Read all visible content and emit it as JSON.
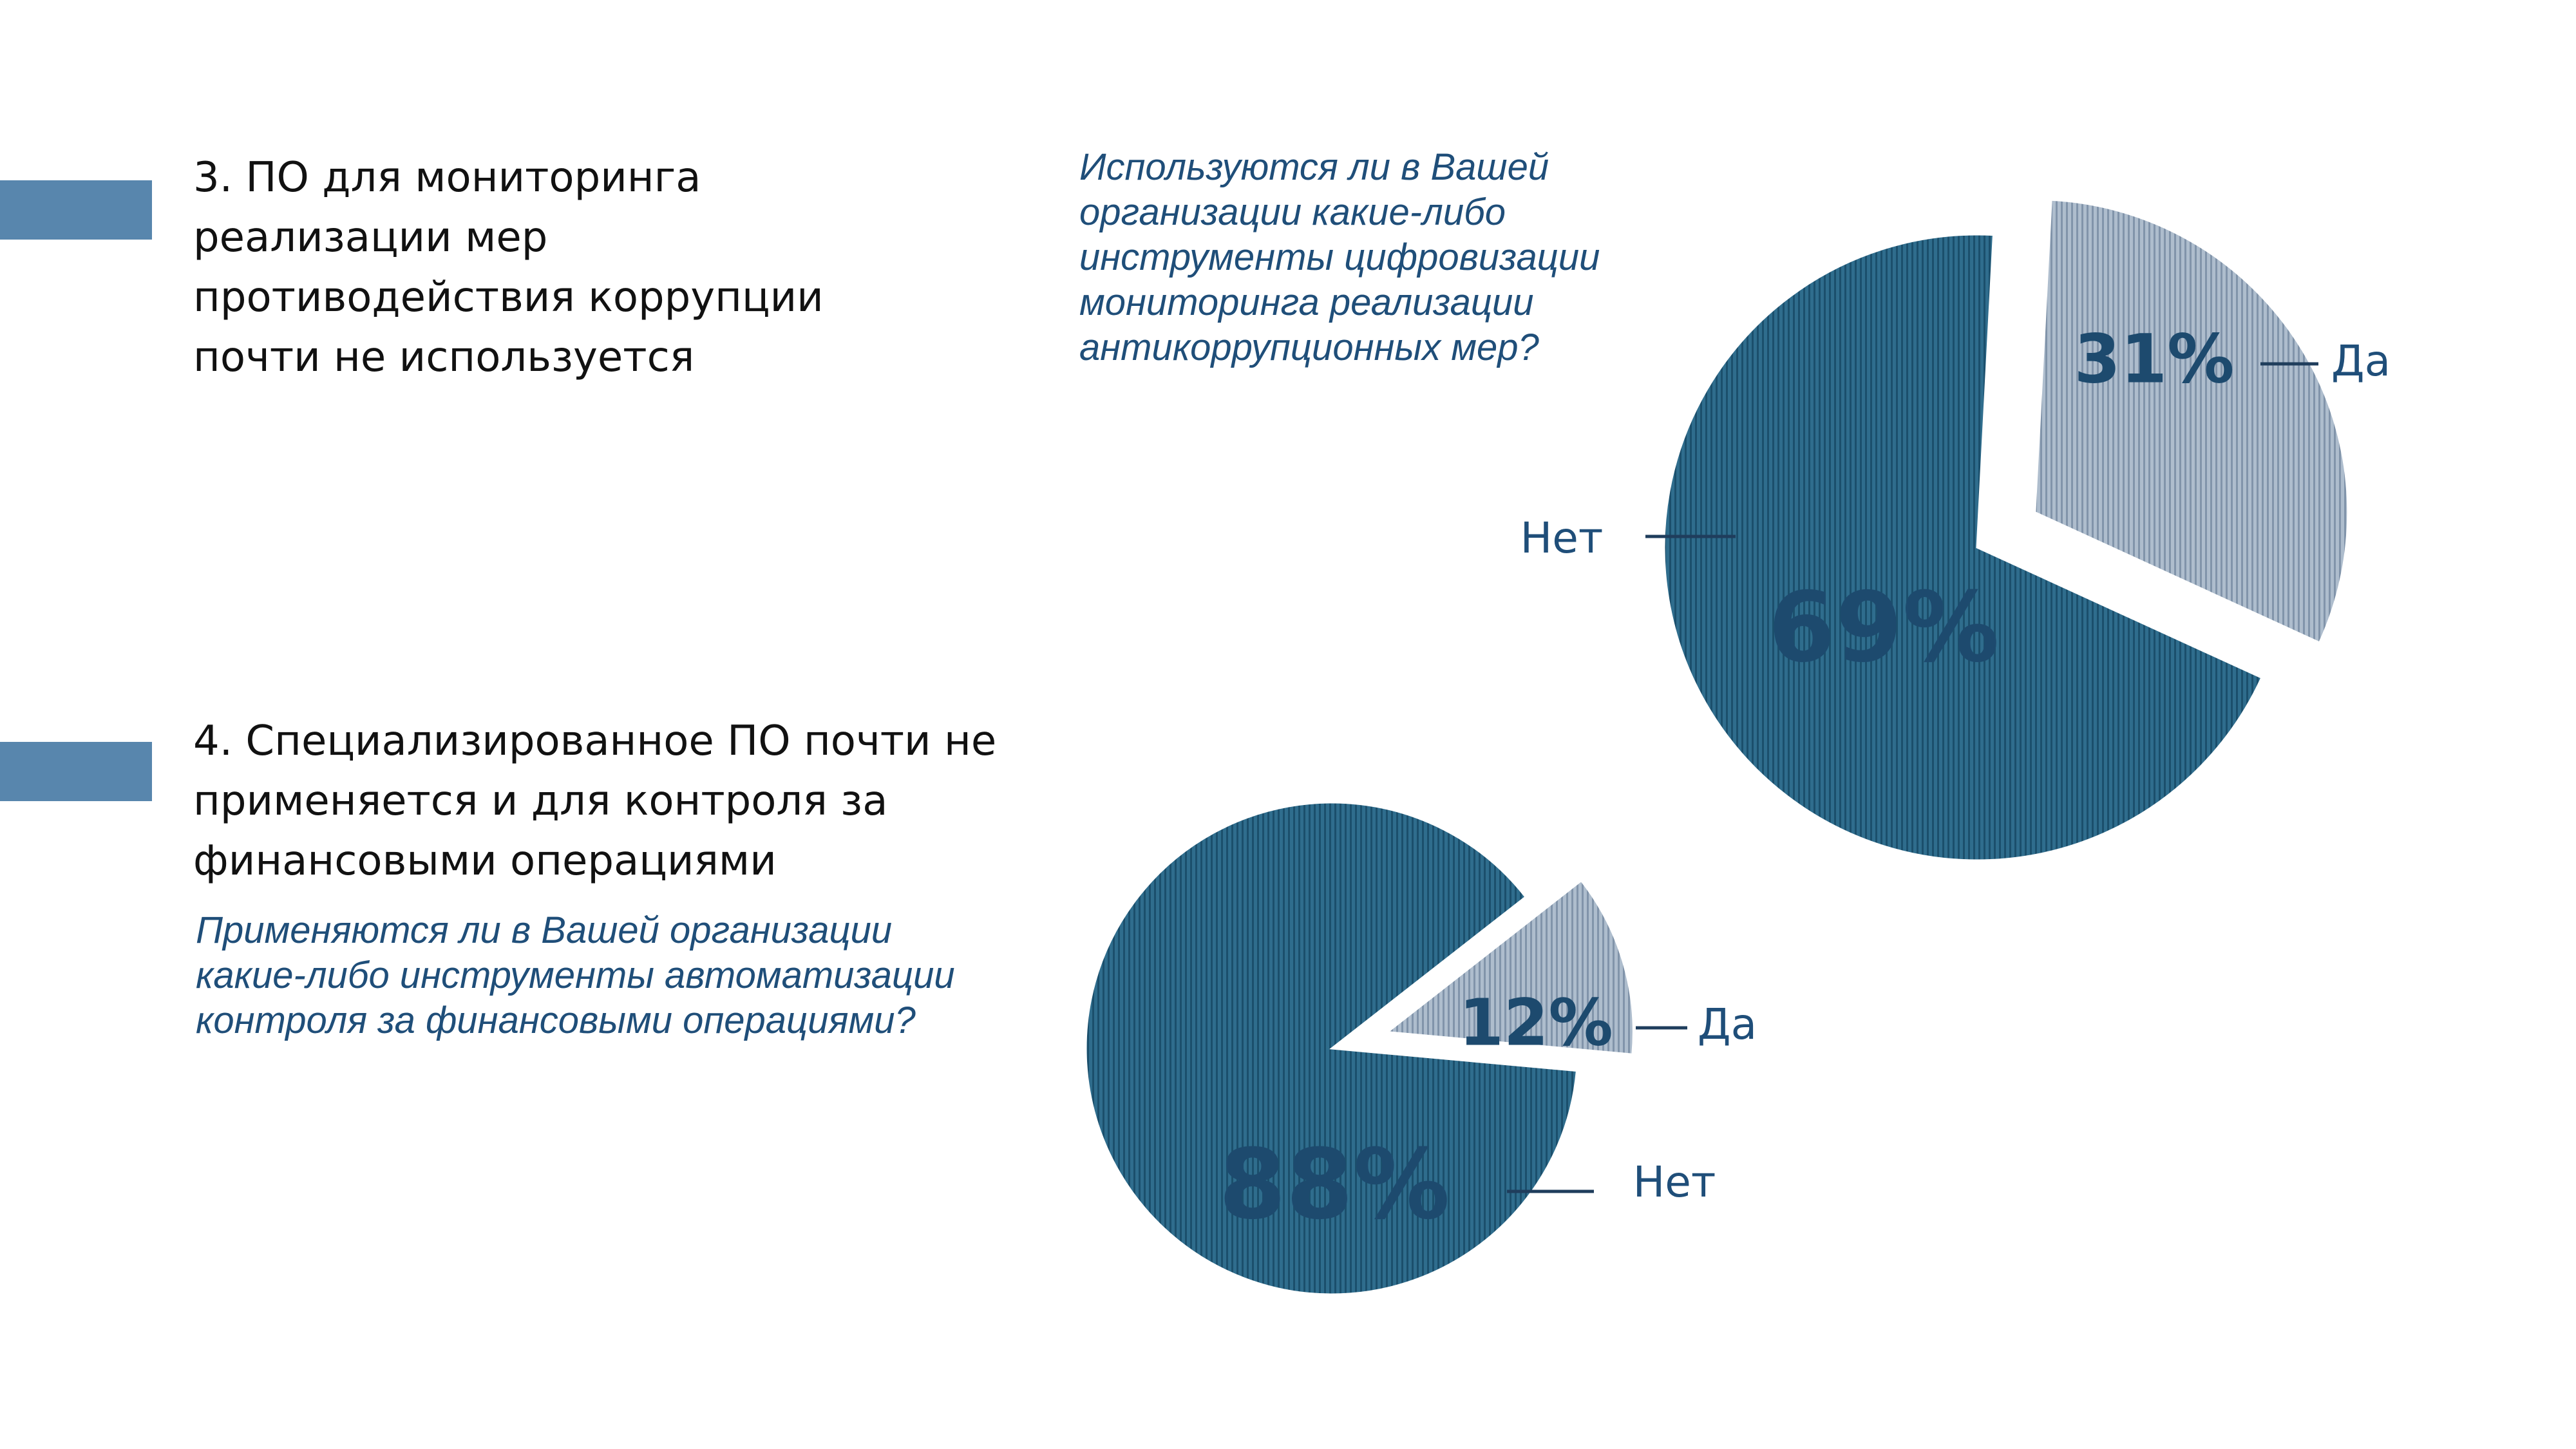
{
  "section3": {
    "heading": "3. ПО для мониторинга\nреализации мер\nпротиводействия коррупции\nпочти не используется",
    "question": "Используются ли в Вашей\nорганизации какие-либо\nинструменты цифровизации\nмониторинга реализации\nантикоррупционных мер?"
  },
  "section4": {
    "heading": "4. Специализированное ПО почти не\nприменяется и для контроля за\nфинансовыми операциями",
    "question": "Применяются ли в Вашей организации\nкакие-либо инструменты автоматизации\nконтроля за финансовыми операциями?"
  },
  "colors": {
    "accent_bar": "#5886ad",
    "slice_no": "#2f6d8d",
    "slice_yes": "#a7b6c6",
    "label": "#1d4a6e",
    "category": "#1f4e79"
  },
  "chart_data": [
    {
      "type": "pie",
      "categories": [
        "Да",
        "Нет"
      ],
      "values": [
        31,
        69
      ],
      "value_labels": [
        "31%",
        "69%"
      ],
      "exploded": "Да"
    },
    {
      "type": "pie",
      "categories": [
        "Да",
        "Нет"
      ],
      "values": [
        12,
        88
      ],
      "value_labels": [
        "12%",
        "88%"
      ],
      "exploded": "Да"
    }
  ]
}
